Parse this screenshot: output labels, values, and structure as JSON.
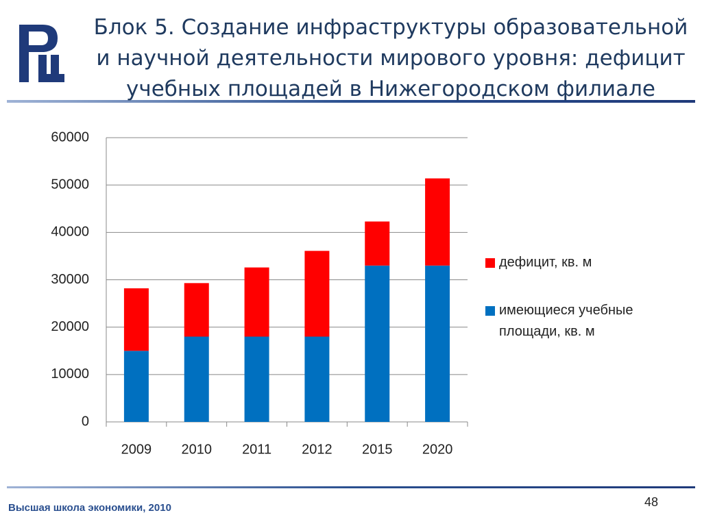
{
  "header": {
    "title": "Блок 5. Создание инфраструктуры образовательной и научной деятельности мирового уровня: дефицит учебных площадей в Нижегородском филиале"
  },
  "chart_data": {
    "type": "stacked_bar",
    "categories": [
      "2009",
      "2010",
      "2011",
      "2012",
      "2015",
      "2020"
    ],
    "series": [
      {
        "name": "имеющиеся учебные площади, кв. м",
        "color": "#0070c0",
        "values": [
          15000,
          18000,
          18000,
          18000,
          33000,
          33000
        ]
      },
      {
        "name": "дефицит, кв. м",
        "color": "#ff0000",
        "values": [
          13200,
          11300,
          14600,
          18100,
          9300,
          18400
        ]
      }
    ],
    "ylim": [
      0,
      60000
    ],
    "yticks": [
      0,
      10000,
      20000,
      30000,
      40000,
      50000,
      60000
    ],
    "grid": true,
    "legend": "right"
  },
  "footer": {
    "text": "Высшая школа экономики, 2010",
    "page_number": 48
  }
}
